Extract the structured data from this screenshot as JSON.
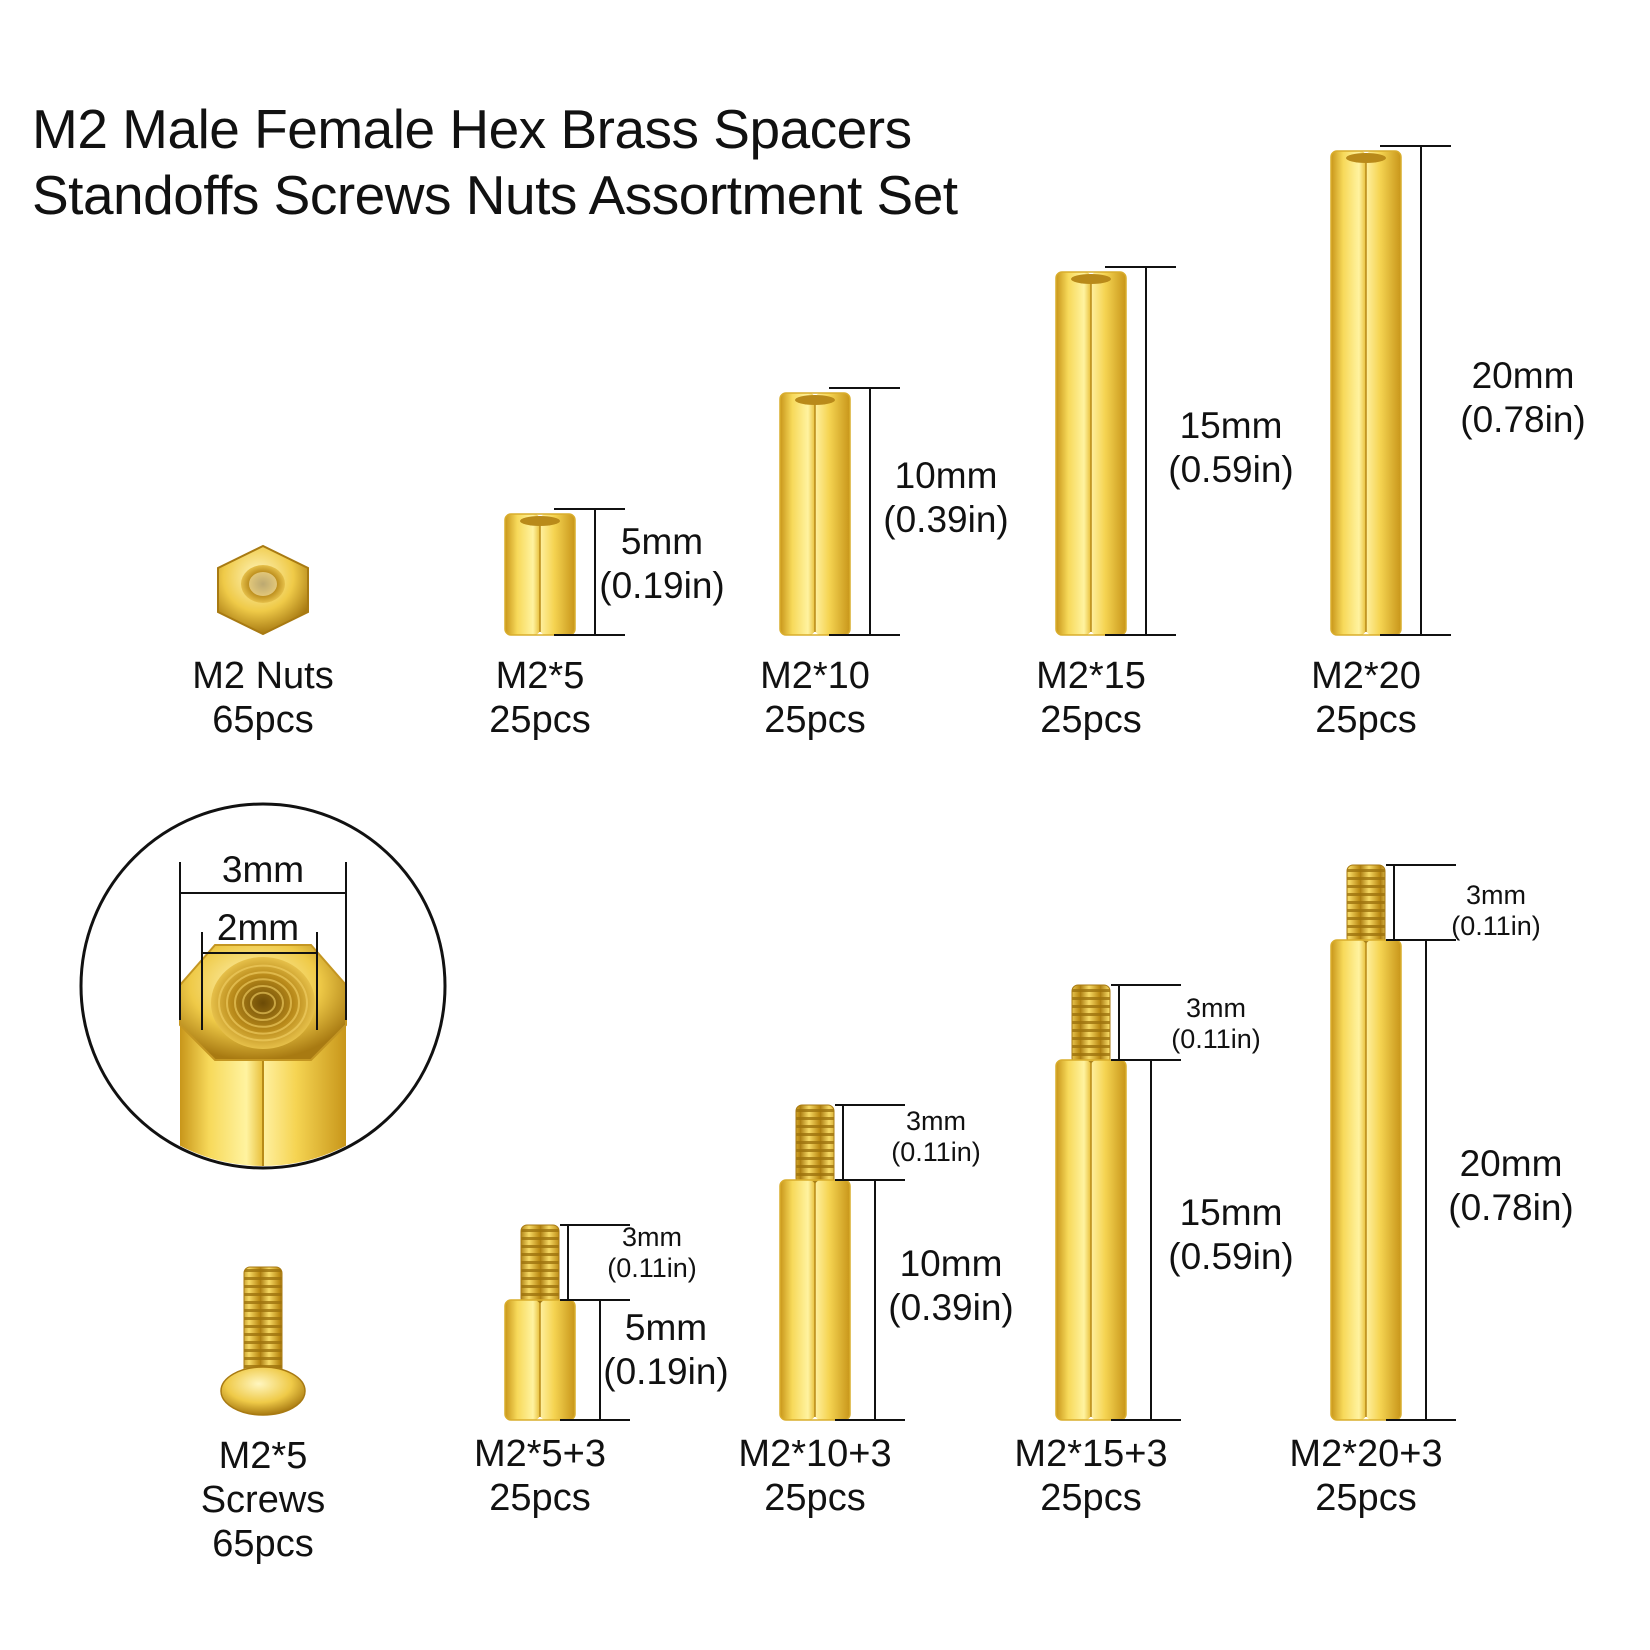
{
  "title": {
    "line1": "M2 Male Female Hex Brass Spacers",
    "line2": "Standoffs Screws Nuts Assortment Set"
  },
  "colors": {
    "brass_light": "#fff3a0",
    "brass_mid": "#f2cf45",
    "brass_dark": "#c8961a",
    "line": "#111111"
  },
  "top_row": {
    "nut": {
      "icon": "hex-nut-icon",
      "name": "M2 Nuts",
      "qty": "65pcs"
    },
    "standoffs": [
      {
        "name": "M2*5",
        "qty": "25pcs",
        "length_mm": 5,
        "dim_mm": "5mm",
        "dim_in": "(0.19in)"
      },
      {
        "name": "M2*10",
        "qty": "25pcs",
        "length_mm": 10,
        "dim_mm": "10mm",
        "dim_in": "(0.39in)"
      },
      {
        "name": "M2*15",
        "qty": "25pcs",
        "length_mm": 15,
        "dim_mm": "15mm",
        "dim_in": "(0.59in)"
      },
      {
        "name": "M2*20",
        "qty": "25pcs",
        "length_mm": 20,
        "dim_mm": "20mm",
        "dim_in": "(0.78in)"
      }
    ]
  },
  "bottom_row": {
    "detail": {
      "icon": "hex-standoff-detail-icon",
      "outer": "3mm",
      "inner": "2mm"
    },
    "screw": {
      "icon": "screw-icon",
      "name": "M2*5",
      "name2": "Screws",
      "qty": "65pcs"
    },
    "standoffs": [
      {
        "name": "M2*5+3",
        "qty": "25pcs",
        "length_mm": 5,
        "dim_mm": "5mm",
        "dim_in": "(0.19in)",
        "thread_mm": "3mm",
        "thread_in": "(0.11in)"
      },
      {
        "name": "M2*10+3",
        "qty": "25pcs",
        "length_mm": 10,
        "dim_mm": "10mm",
        "dim_in": "(0.39in)",
        "thread_mm": "3mm",
        "thread_in": "(0.11in)"
      },
      {
        "name": "M2*15+3",
        "qty": "25pcs",
        "length_mm": 15,
        "dim_mm": "15mm",
        "dim_in": "(0.59in)",
        "thread_mm": "3mm",
        "thread_in": "(0.11in)"
      },
      {
        "name": "M2*20+3",
        "qty": "25pcs",
        "length_mm": 20,
        "dim_mm": "20mm",
        "dim_in": "(0.78in)",
        "thread_mm": "3mm",
        "thread_in": "(0.11in)"
      }
    ]
  }
}
